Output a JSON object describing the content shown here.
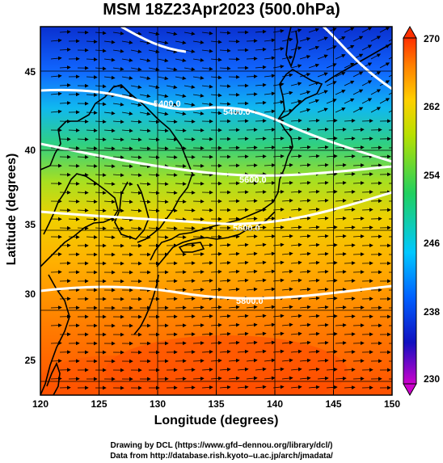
{
  "title": "MSM 18Z23Apr2023 (500.0hPa)",
  "xlabel": "Longitude (degrees)",
  "ylabel": "Latitude  (degrees)",
  "x_ticks": [
    "120",
    "125",
    "130",
    "135",
    "140",
    "145",
    "150"
  ],
  "y_ticks": [
    "25",
    "30",
    "35",
    "40",
    "45"
  ],
  "colorbar": {
    "ticks": [
      "230",
      "238",
      "246",
      "254",
      "262",
      "270"
    ],
    "range": [
      230,
      270
    ],
    "colors": [
      "#cc00cc",
      "#1010c0",
      "#0060ff",
      "#00c8ff",
      "#20d060",
      "#b8e000",
      "#ffd000",
      "#ff8000",
      "#ff3000"
    ]
  },
  "contours": [
    {
      "label": "5400.0"
    },
    {
      "label": "5400.0"
    },
    {
      "label": "5600.0"
    },
    {
      "label": "5600.0"
    },
    {
      "label": "5800.0"
    }
  ],
  "credits": [
    "Drawing by DCL (https://www.gfd–dennou.org/library/dcl/)",
    "Data from http://database.rish.kyoto–u.ac.jp/arch/jmadata/"
  ],
  "colors": {
    "contour": "#ffffff",
    "coast": "#000000",
    "vector": "#000000"
  }
}
